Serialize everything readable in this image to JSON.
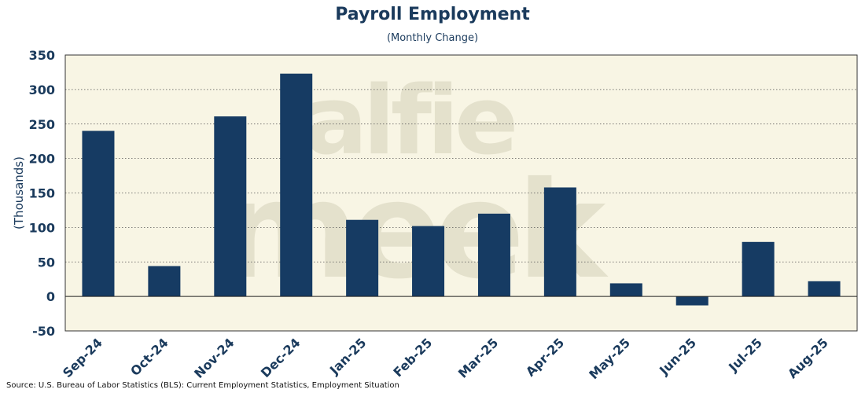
{
  "watermark": {
    "line1": "alfie",
    "line2": "meek"
  },
  "source": "Source: U.S. Bureau of Labor Statistics (BLS): Current Employment Statistics, Employment Situation",
  "colors": {
    "plot_bg": "#f8f5e4",
    "bar": "#163b63",
    "text": "#1a3a5c",
    "watermark": "#e1ddc8"
  },
  "chart_data": {
    "type": "bar",
    "title": "Payroll Employment",
    "subtitle": "(Monthly Change)",
    "xlabel": "",
    "ylabel": "(Thousands)",
    "ylim": [
      -50,
      350
    ],
    "yticks": [
      -50,
      0,
      50,
      100,
      150,
      200,
      250,
      300,
      350
    ],
    "grid": true,
    "categories": [
      "Sep-24",
      "Oct-24",
      "Nov-24",
      "Dec-24",
      "Jan-25",
      "Feb-25",
      "Mar-25",
      "Apr-25",
      "May-25",
      "Jun-25",
      "Jul-25",
      "Aug-25"
    ],
    "values": [
      240,
      44,
      261,
      323,
      111,
      102,
      120,
      158,
      19,
      -13,
      79,
      22
    ]
  }
}
